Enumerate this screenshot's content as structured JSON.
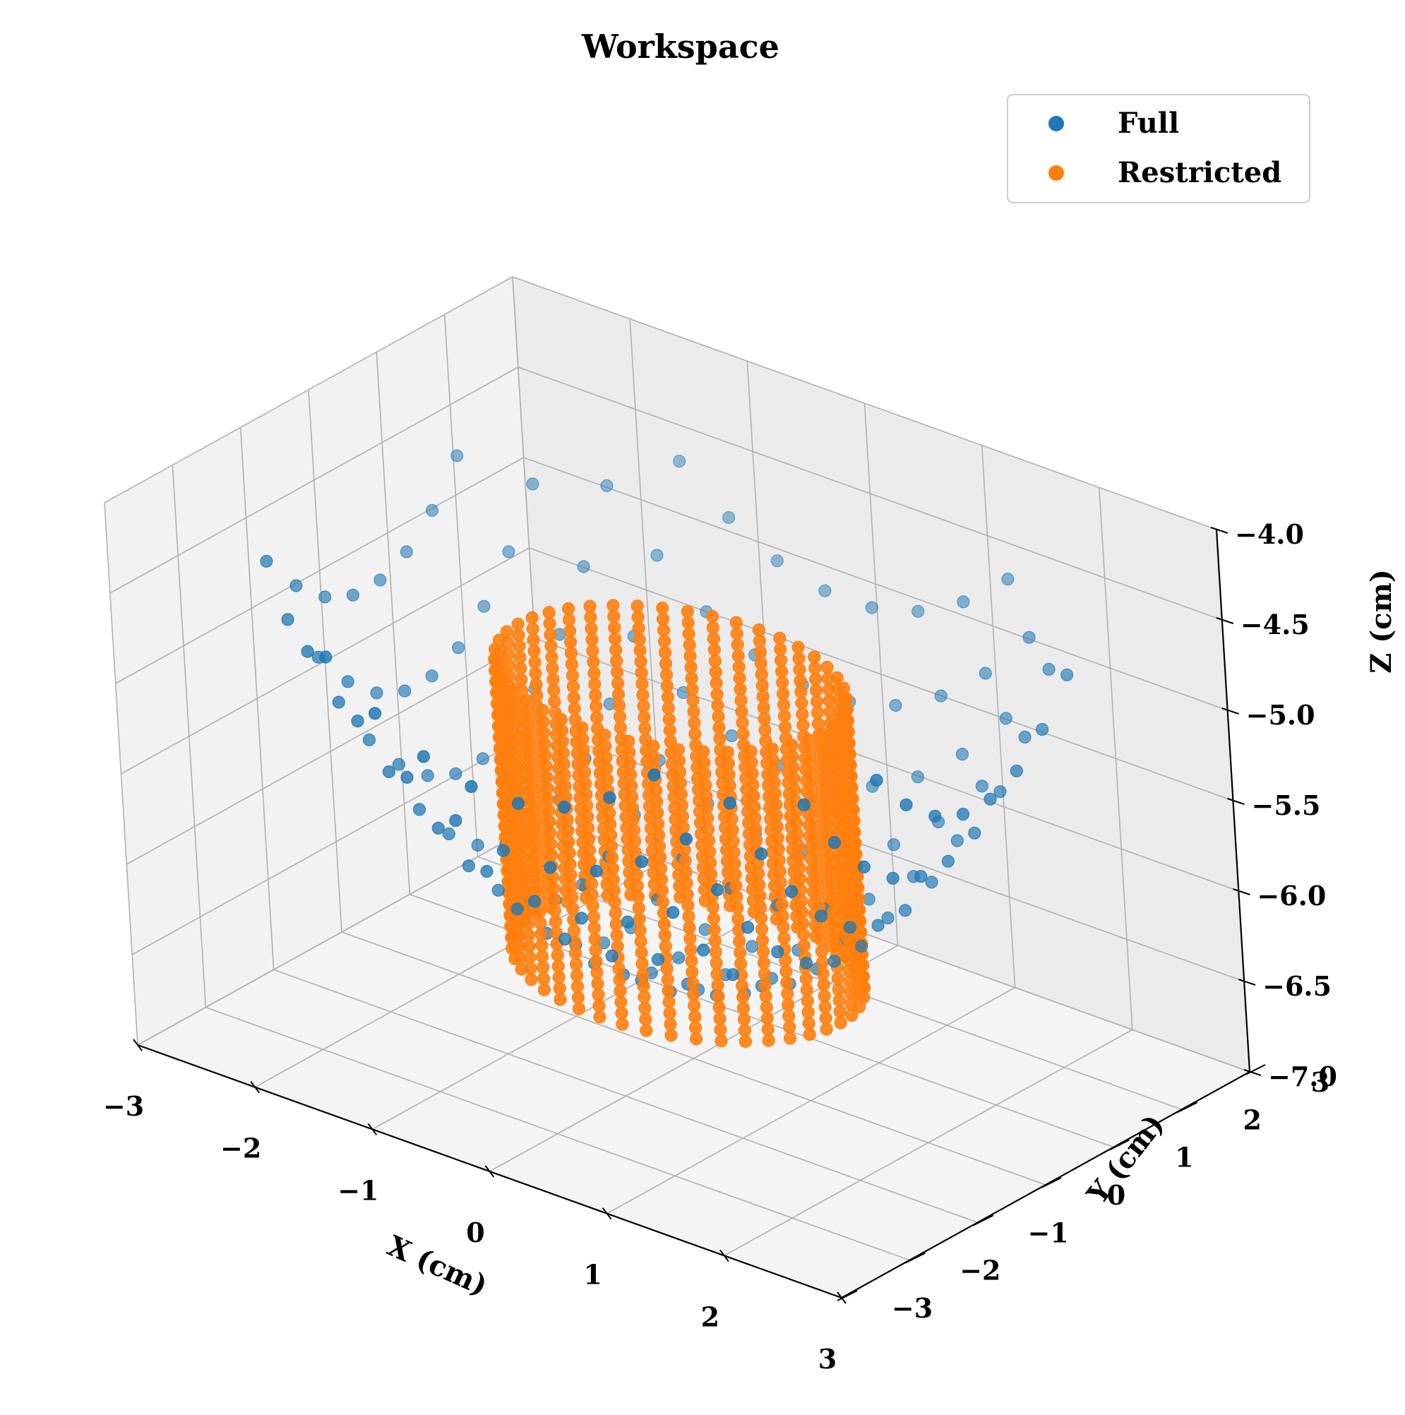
{
  "chart_data": {
    "type": "scatter3d",
    "title": "Workspace",
    "xlabel": "X (cm)",
    "ylabel": "Y (cm)",
    "zlabel": "Z (cm)",
    "xlim": [
      -3,
      3
    ],
    "ylim": [
      -3,
      3
    ],
    "zlim": [
      -7.0,
      -4.0
    ],
    "x_ticks": [
      -3,
      -2,
      -1,
      0,
      1,
      2,
      3
    ],
    "y_ticks": [
      -3,
      -2,
      -1,
      0,
      1,
      2,
      3
    ],
    "z_ticks": [
      -7.0,
      -6.5,
      -6.0,
      -5.5,
      -5.0,
      -4.5,
      -4.0
    ],
    "x_tick_labels": [
      "−3",
      "−2",
      "−1",
      "0",
      "1",
      "2",
      "3"
    ],
    "y_tick_labels": [
      "−3",
      "−2",
      "−1",
      "0",
      "1",
      "2",
      "3"
    ],
    "z_tick_labels": [
      "−7.0",
      "−6.5",
      "−6.0",
      "−5.5",
      "−5.0",
      "−4.5",
      "−4.0"
    ],
    "grid": true,
    "legend_position": "top-right",
    "series": [
      {
        "name": "Full",
        "color": "#1f77b4",
        "shape": "bowl",
        "description_values": {
          "r_max": 3.0,
          "r_step": 0.4,
          "z_at_center": -6.55,
          "z_at_rim": -4.5
        }
      },
      {
        "name": "Restricted",
        "color": "#ff7f0e",
        "shape": "cylinder",
        "description_values": {
          "radius": 1.3,
          "z_min": -6.5,
          "z_max": -4.9
        }
      }
    ]
  }
}
